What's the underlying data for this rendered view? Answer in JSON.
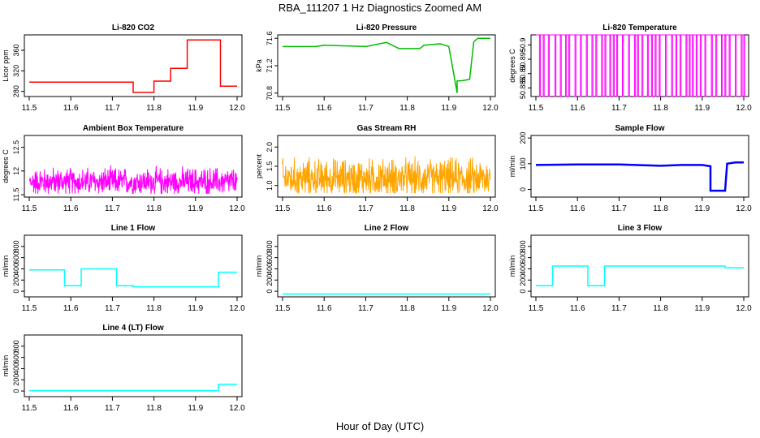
{
  "title": "RBA_111207  1 Hz Diagnostics Zoomed AM",
  "xlabel": "Hour of Day (UTC)",
  "chart_data": [
    {
      "type": "line",
      "title": "Li-820 CO2",
      "ylabel": "Licor ppm",
      "color": "#ff0000",
      "xlim": [
        11.5,
        12.0
      ],
      "ylim": [
        270,
        390
      ],
      "xticks": [
        "11.5",
        "11.6",
        "11.7",
        "11.8",
        "11.9",
        "12.0"
      ],
      "yticks": [
        280,
        320,
        360
      ],
      "series": [
        {
          "name": "CO2",
          "x": [
            11.5,
            11.75,
            11.75,
            11.8,
            11.8,
            11.84,
            11.84,
            11.88,
            11.88,
            11.96,
            11.96,
            12.0
          ],
          "y": [
            298,
            298,
            278,
            278,
            300,
            300,
            325,
            325,
            380,
            380,
            290,
            290
          ]
        }
      ]
    },
    {
      "type": "line",
      "title": "Li-820 Pressure",
      "ylabel": "kPa",
      "color": "#00bb00",
      "xlim": [
        11.5,
        12.0
      ],
      "ylim": [
        70.75,
        71.65
      ],
      "xticks": [
        "11.5",
        "11.6",
        "11.7",
        "11.8",
        "11.9",
        "12.0"
      ],
      "yticks": [
        70.8,
        71.2,
        71.6
      ],
      "series": [
        {
          "name": "Pressure",
          "x": [
            11.5,
            11.58,
            11.6,
            11.7,
            11.75,
            11.78,
            11.83,
            11.84,
            11.88,
            11.9,
            11.92,
            11.92,
            11.93,
            11.95,
            11.96,
            11.97,
            12.0
          ],
          "y": [
            71.48,
            71.48,
            71.5,
            71.48,
            71.54,
            71.45,
            71.45,
            71.5,
            71.52,
            71.48,
            70.8,
            70.98,
            70.98,
            71.0,
            71.55,
            71.6,
            71.6
          ]
        }
      ]
    },
    {
      "type": "line",
      "title": "Li-820 Temperature",
      "ylabel": "degrees C",
      "color": "#ff00ff",
      "xlim": [
        11.5,
        12.0
      ],
      "ylim": [
        50.882,
        50.9035
      ],
      "xticks": [
        "11.5",
        "11.6",
        "11.7",
        "11.8",
        "11.9",
        "12.0"
      ],
      "yticks": [
        50.885,
        50.89,
        50.895,
        50.9
      ],
      "series": [
        {
          "name": "Temperature",
          "x": [
            11.5,
            12.0
          ],
          "y": [
            50.9035,
            50.9035
          ]
        }
      ]
    },
    {
      "type": "line",
      "title": "Ambient Box Temperature",
      "ylabel": "degrees C",
      "color": "#ff00ff",
      "xlim": [
        11.5,
        12.0
      ],
      "ylim": [
        11.45,
        12.75
      ],
      "xticks": [
        "11.5",
        "11.6",
        "11.7",
        "11.8",
        "11.9",
        "12.0"
      ],
      "yticks": [
        11.5,
        12.0,
        12.5
      ],
      "series": [
        {
          "name": "Ambient",
          "x": [
            11.5,
            12.0
          ],
          "y": [
            11.8,
            11.8
          ]
        }
      ]
    },
    {
      "type": "line",
      "title": "Gas Stream RH",
      "ylabel": "percent",
      "color": "#ffa500",
      "xlim": [
        11.5,
        12.0
      ],
      "ylim": [
        0.7,
        2.3
      ],
      "xticks": [
        "11.5",
        "11.6",
        "11.7",
        "11.8",
        "11.9",
        "12.0"
      ],
      "yticks": [
        1.0,
        1.5,
        2.0
      ],
      "series": [
        {
          "name": "RH",
          "x": [
            11.5,
            12.0
          ],
          "y": [
            1.2,
            1.2
          ]
        }
      ]
    },
    {
      "type": "line",
      "title": "Sample Flow",
      "ylabel": "ml/min",
      "color": "#0000ff",
      "xlim": [
        11.5,
        12.0
      ],
      "ylim": [
        -30,
        210
      ],
      "xticks": [
        "11.5",
        "11.6",
        "11.7",
        "11.8",
        "11.9",
        "12.0"
      ],
      "yticks": [
        0,
        100,
        200
      ],
      "series": [
        {
          "name": "Sample",
          "x": [
            11.5,
            11.6,
            11.7,
            11.8,
            11.85,
            11.9,
            11.92,
            11.92,
            11.955,
            11.96,
            11.98,
            12.0
          ],
          "y": [
            95,
            97,
            97,
            92,
            95,
            95,
            90,
            -5,
            -5,
            100,
            105,
            105
          ]
        }
      ]
    },
    {
      "type": "line",
      "title": "Line 1 Flow",
      "ylabel": "ml/min",
      "color": "#00ffff",
      "xlim": [
        11.5,
        12.0
      ],
      "ylim": [
        -100,
        1000
      ],
      "xticks": [
        "11.5",
        "11.6",
        "11.7",
        "11.8",
        "11.9",
        "12.0"
      ],
      "yticks": [
        0,
        200,
        400,
        600,
        800
      ],
      "series": [
        {
          "name": "Line1",
          "x": [
            11.5,
            11.585,
            11.585,
            11.625,
            11.625,
            11.71,
            11.71,
            11.75,
            11.75,
            11.955,
            11.955,
            12.0
          ],
          "y": [
            380,
            380,
            100,
            100,
            400,
            400,
            100,
            100,
            80,
            80,
            340,
            340
          ]
        }
      ]
    },
    {
      "type": "line",
      "title": "Line 2 Flow",
      "ylabel": "ml/min",
      "color": "#00ffff",
      "xlim": [
        11.5,
        12.0
      ],
      "ylim": [
        -100,
        1000
      ],
      "xticks": [
        "11.5",
        "11.6",
        "11.7",
        "11.8",
        "11.9",
        "12.0"
      ],
      "yticks": [
        0,
        200,
        400,
        600,
        800
      ],
      "series": [
        {
          "name": "Line2",
          "x": [
            11.5,
            12.0
          ],
          "y": [
            -50,
            -50
          ]
        }
      ]
    },
    {
      "type": "line",
      "title": "Line 3 Flow",
      "ylabel": "ml/min",
      "color": "#00ffff",
      "xlim": [
        11.5,
        12.0
      ],
      "ylim": [
        -100,
        1000
      ],
      "xticks": [
        "11.5",
        "11.6",
        "11.7",
        "11.8",
        "11.9",
        "12.0"
      ],
      "yticks": [
        0,
        200,
        400,
        600,
        800
      ],
      "series": [
        {
          "name": "Line3",
          "x": [
            11.5,
            11.54,
            11.54,
            11.625,
            11.625,
            11.665,
            11.665,
            11.955,
            11.955,
            12.0
          ],
          "y": [
            100,
            100,
            450,
            450,
            100,
            100,
            450,
            450,
            420,
            420
          ]
        }
      ]
    },
    {
      "type": "line",
      "title": "Line 4 (LT) Flow",
      "ylabel": "ml/min",
      "color": "#00ffff",
      "xlim": [
        11.5,
        12.0
      ],
      "ylim": [
        -100,
        1000
      ],
      "xticks": [
        "11.5",
        "11.6",
        "11.7",
        "11.8",
        "11.9",
        "12.0"
      ],
      "yticks": [
        0,
        200,
        400,
        600,
        800
      ],
      "series": [
        {
          "name": "Line4",
          "x": [
            11.5,
            11.955,
            11.955,
            12.0
          ],
          "y": [
            5,
            5,
            120,
            120
          ]
        }
      ]
    }
  ]
}
